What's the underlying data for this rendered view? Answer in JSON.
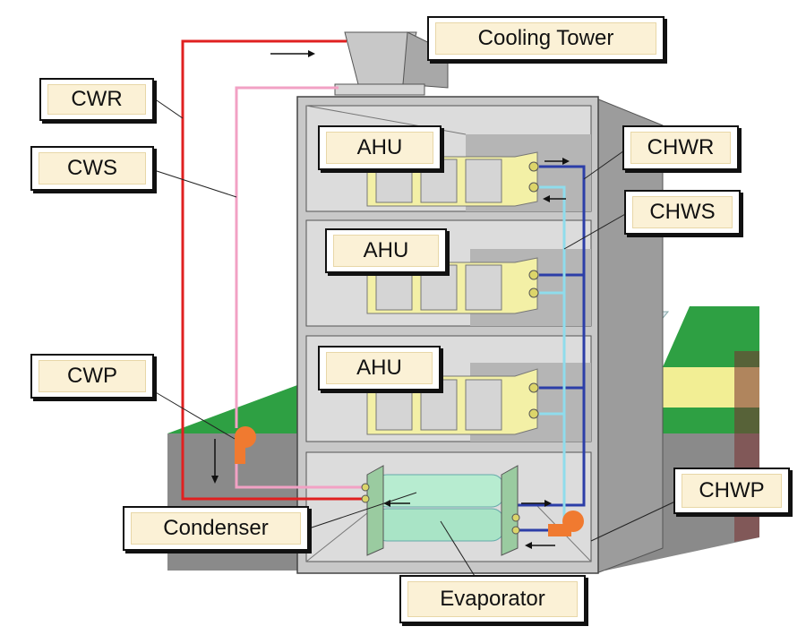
{
  "labels": {
    "cooling_tower": "Cooling Tower",
    "cwr": "CWR",
    "cws": "CWS",
    "ahu_top": "AHU",
    "ahu_mid": "AHU",
    "ahu_low": "AHU",
    "chwr": "CHWR",
    "chws": "CHWS",
    "cwp": "CWP",
    "condenser": "Condenser",
    "chwp": "CHWP",
    "evaporator": "Evaporator"
  },
  "colors": {
    "condenser_water_return": "#e02020",
    "condenser_water_supply": "#f2a1c4",
    "chilled_water_return": "#2c3ea8",
    "chilled_water_supply": "#8fdcec",
    "pump": "#f07a30",
    "ahu": "#f3f0a6",
    "ground": "#2ea043",
    "building": "#c8c8c8"
  }
}
